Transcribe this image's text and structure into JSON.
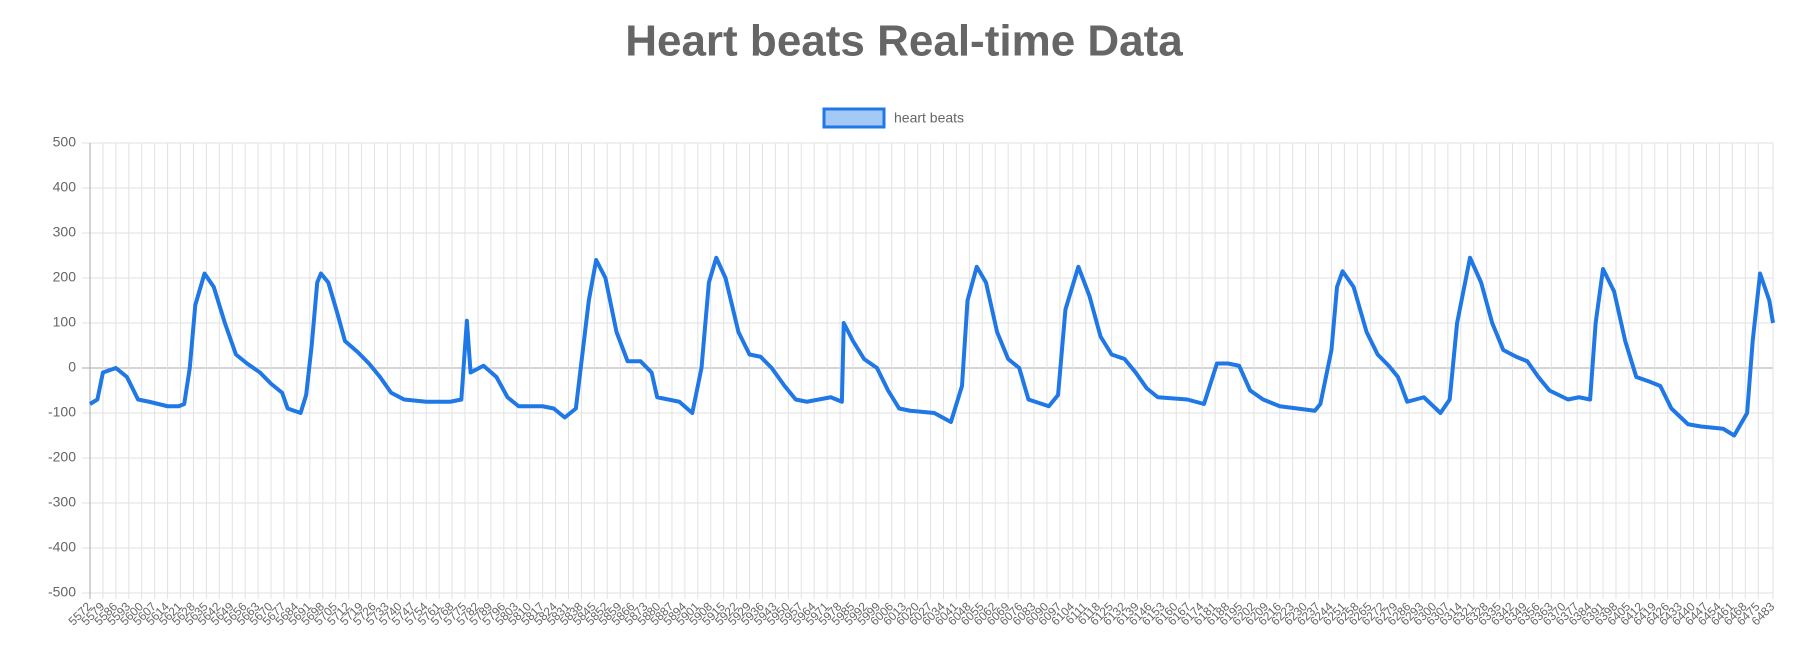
{
  "chart_data": {
    "type": "line",
    "title": "Heart beats Real-time Data",
    "grid": true,
    "legend": "top",
    "x": [
      5572,
      5576,
      5579,
      5586,
      5592,
      5598,
      5604,
      5614,
      5620,
      5623,
      5626,
      5629,
      5634,
      5639,
      5645,
      5651,
      5657,
      5664,
      5670,
      5676,
      5679,
      5686,
      5689,
      5692,
      5695,
      5697,
      5701,
      5706,
      5710,
      5717,
      5723,
      5729,
      5735,
      5742,
      5754,
      5767,
      5773,
      5776,
      5778,
      5785,
      5792,
      5798,
      5804,
      5817,
      5823,
      5829,
      5835,
      5842,
      5846,
      5851,
      5857,
      5863,
      5870,
      5876,
      5879,
      5891,
      5898,
      5903,
      5907,
      5911,
      5916,
      5923,
      5929,
      5935,
      5941,
      5948,
      5954,
      5960,
      5973,
      5979,
      5980,
      5985,
      5991,
      5998,
      6004,
      6010,
      6016,
      6029,
      6038,
      6044,
      6047,
      6052,
      6057,
      6063,
      6069,
      6075,
      6080,
      6091,
      6096,
      6100,
      6107,
      6113,
      6119,
      6125,
      6132,
      6138,
      6144,
      6150,
      6166,
      6175,
      6182,
      6188,
      6194,
      6200,
      6207,
      6216,
      6235,
      6238,
      6244,
      6247,
      6250,
      6256,
      6263,
      6269,
      6275,
      6280,
      6285,
      6294,
      6303,
      6308,
      6312,
      6319,
      6325,
      6331,
      6337,
      6344,
      6350,
      6356,
      6362,
      6372,
      6378,
      6384,
      6387,
      6391,
      6397,
      6403,
      6409,
      6416,
      6422,
      6428,
      6437,
      6444,
      6456,
      6462,
      6469,
      6472,
      6476,
      6481,
      6483
    ],
    "series": [
      {
        "name": "heart beats",
        "color": "#1f78e6",
        "values": [
          -80,
          -70,
          -10,
          0,
          -20,
          -70,
          -75,
          -85,
          -85,
          -80,
          0,
          140,
          210,
          180,
          100,
          30,
          10,
          -10,
          -35,
          -55,
          -90,
          -100,
          -60,
          50,
          190,
          210,
          190,
          120,
          60,
          35,
          10,
          -20,
          -55,
          -70,
          -75,
          -75,
          -70,
          105,
          -10,
          5,
          -20,
          -65,
          -85,
          -85,
          -90,
          -110,
          -90,
          150,
          240,
          200,
          80,
          15,
          15,
          -10,
          -65,
          -75,
          -100,
          0,
          190,
          245,
          200,
          80,
          30,
          25,
          0,
          -40,
          -70,
          -75,
          -65,
          -75,
          100,
          60,
          20,
          0,
          -50,
          -90,
          -95,
          -100,
          -120,
          -40,
          150,
          225,
          190,
          80,
          20,
          0,
          -70,
          -85,
          -60,
          130,
          225,
          160,
          70,
          30,
          20,
          -10,
          -45,
          -65,
          -70,
          -80,
          10,
          10,
          5,
          -50,
          -70,
          -85,
          -95,
          -80,
          40,
          180,
          215,
          180,
          80,
          30,
          5,
          -20,
          -75,
          -65,
          -100,
          -70,
          100,
          245,
          190,
          100,
          40,
          25,
          15,
          -20,
          -50,
          -70,
          -65,
          -70,
          100,
          220,
          170,
          60,
          -20,
          -30,
          -40,
          -90,
          -125,
          -130,
          -135,
          -150,
          -100,
          60,
          210,
          150,
          100
        ]
      }
    ],
    "xlim": [
      5572,
      6483
    ],
    "xticks": [
      5572,
      5579,
      5586,
      5593,
      5600,
      5607,
      5614,
      5621,
      5628,
      5635,
      5642,
      5649,
      5656,
      5663,
      5670,
      5677,
      5684,
      5691,
      5698,
      5705,
      5712,
      5719,
      5726,
      5733,
      5740,
      5747,
      5754,
      5761,
      5768,
      5775,
      5782,
      5789,
      5796,
      5803,
      5810,
      5817,
      5824,
      5831,
      5838,
      5845,
      5852,
      5859,
      5866,
      5873,
      5880,
      5887,
      5894,
      5901,
      5908,
      5915,
      5922,
      5929,
      5936,
      5943,
      5950,
      5957,
      5964,
      5971,
      5978,
      5985,
      5992,
      5999,
      6006,
      6013,
      6020,
      6027,
      6034,
      6041,
      6048,
      6055,
      6062,
      6069,
      6076,
      6083,
      6090,
      6097,
      6104,
      6111,
      6118,
      6125,
      6132,
      6139,
      6146,
      6153,
      6160,
      6167,
      6174,
      6181,
      6188,
      6195,
      6202,
      6209,
      6216,
      6223,
      6230,
      6237,
      6244,
      6251,
      6258,
      6265,
      6272,
      6279,
      6286,
      6293,
      6300,
      6307,
      6314,
      6321,
      6328,
      6335,
      6342,
      6349,
      6356,
      6363,
      6370,
      6377,
      6384,
      6391,
      6398,
      6405,
      6412,
      6419,
      6426,
      6433,
      6440,
      6447,
      6454,
      6461,
      6468,
      6475,
      6483
    ],
    "ylim": [
      -500,
      500
    ],
    "yticks": [
      -500,
      -400,
      -300,
      -200,
      -100,
      0,
      100,
      200,
      300,
      400,
      500
    ]
  }
}
